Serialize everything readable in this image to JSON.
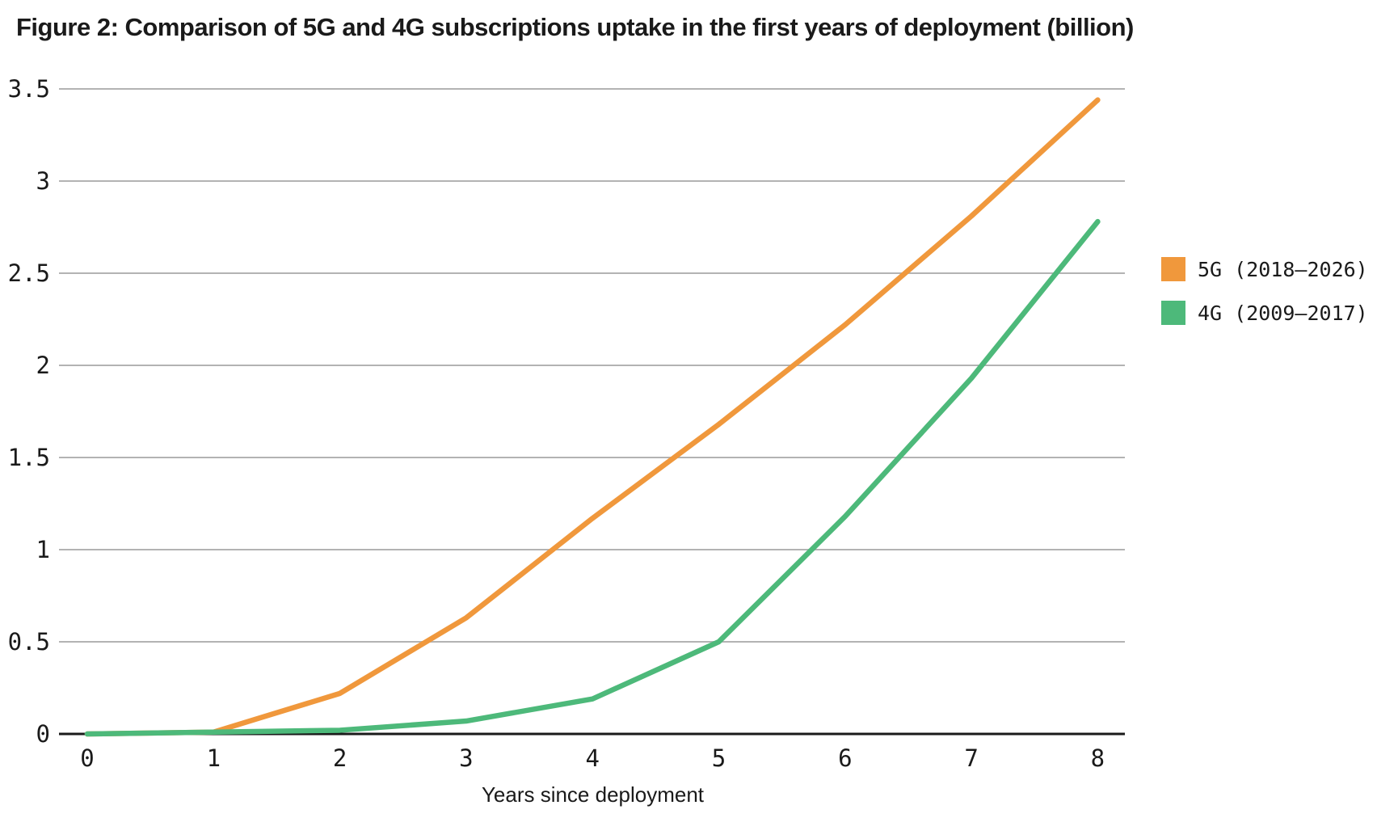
{
  "title": "Figure 2: Comparison of 5G and 4G subscriptions uptake in the first years of deployment (billion)",
  "chart_data": {
    "type": "line",
    "x": [
      0,
      1,
      2,
      3,
      4,
      5,
      6,
      7,
      8
    ],
    "x_tick_labels": [
      "0",
      "1",
      "2",
      "3",
      "4",
      "5",
      "6",
      "7",
      "8"
    ],
    "y_ticks": [
      0,
      0.5,
      1,
      1.5,
      2,
      2.5,
      3,
      3.5
    ],
    "y_tick_labels": [
      "0",
      "0.5",
      "1",
      "1.5",
      "2",
      "2.5",
      "3",
      "3.5"
    ],
    "xlabel": "Years since deployment",
    "ylabel": "",
    "xlim": [
      0,
      8
    ],
    "ylim": [
      0,
      3.5
    ],
    "grid": "horizontal",
    "legend_position": "right",
    "series": [
      {
        "name": "5G (2018–2026)",
        "color": "#F0983C",
        "values": [
          0,
          0.01,
          0.22,
          0.63,
          1.17,
          1.68,
          2.22,
          2.81,
          3.44
        ]
      },
      {
        "name": "4G (2009–2017)",
        "color": "#4DB97A",
        "values": [
          0,
          0.01,
          0.02,
          0.07,
          0.19,
          0.5,
          1.18,
          1.93,
          2.78
        ]
      }
    ]
  },
  "colors": {
    "axis": "#1a1a1a",
    "gridline": "#b3b3b3",
    "text": "#1a1a1a",
    "background": "#ffffff"
  }
}
